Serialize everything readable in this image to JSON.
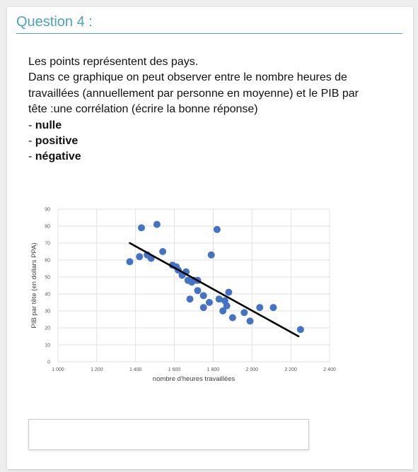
{
  "question": {
    "title": "Question 4 :",
    "line1": "Les points représentent des pays.",
    "line2": "Dans ce graphique on peut observer entre le nombre heures de",
    "line3": "travaillées (annuellement par personne en moyenne) et le PIB par",
    "line4": "tête :une corrélation (écrire la bonne réponse)",
    "options": [
      {
        "prefix": "- ",
        "label": "nulle"
      },
      {
        "prefix": "- ",
        "label": "positive"
      },
      {
        "prefix": "- ",
        "label": "négative"
      }
    ]
  },
  "answer": {
    "value": ""
  },
  "colors": {
    "accent": "#4aa3bd",
    "points": "#4472c4",
    "trend": "#000000"
  },
  "chart_data": {
    "type": "scatter",
    "xlabel": "nombre d'heures travaillées",
    "ylabel": "PIB par tête (en dollars PPA)",
    "xlim": [
      1000,
      2400
    ],
    "ylim": [
      0,
      90
    ],
    "grid": true,
    "xticks": [
      "1 000",
      "1 200",
      "1 400",
      "1 600",
      "1 800",
      "2 000",
      "2 200",
      "2 400"
    ],
    "yticks": [
      "0",
      "10",
      "20",
      "30",
      "40",
      "50",
      "60",
      "70",
      "80",
      "90"
    ],
    "points": [
      {
        "x": 1370,
        "y": 59
      },
      {
        "x": 1420,
        "y": 62
      },
      {
        "x": 1430,
        "y": 79
      },
      {
        "x": 1460,
        "y": 63
      },
      {
        "x": 1480,
        "y": 61
      },
      {
        "x": 1510,
        "y": 81
      },
      {
        "x": 1540,
        "y": 65
      },
      {
        "x": 1590,
        "y": 57
      },
      {
        "x": 1610,
        "y": 56
      },
      {
        "x": 1620,
        "y": 54
      },
      {
        "x": 1640,
        "y": 51
      },
      {
        "x": 1660,
        "y": 53
      },
      {
        "x": 1670,
        "y": 48
      },
      {
        "x": 1690,
        "y": 47
      },
      {
        "x": 1700,
        "y": 48
      },
      {
        "x": 1720,
        "y": 48
      },
      {
        "x": 1720,
        "y": 42
      },
      {
        "x": 1680,
        "y": 37
      },
      {
        "x": 1750,
        "y": 39
      },
      {
        "x": 1750,
        "y": 32
      },
      {
        "x": 1780,
        "y": 35
      },
      {
        "x": 1790,
        "y": 63
      },
      {
        "x": 1820,
        "y": 78
      },
      {
        "x": 1830,
        "y": 37
      },
      {
        "x": 1850,
        "y": 30
      },
      {
        "x": 1860,
        "y": 36
      },
      {
        "x": 1870,
        "y": 33
      },
      {
        "x": 1880,
        "y": 41
      },
      {
        "x": 1900,
        "y": 26
      },
      {
        "x": 1960,
        "y": 29
      },
      {
        "x": 1990,
        "y": 24
      },
      {
        "x": 2040,
        "y": 32
      },
      {
        "x": 2110,
        "y": 32
      },
      {
        "x": 2250,
        "y": 19
      }
    ],
    "trendline": [
      {
        "x": 1370,
        "y": 70
      },
      {
        "x": 2240,
        "y": 15
      }
    ]
  }
}
